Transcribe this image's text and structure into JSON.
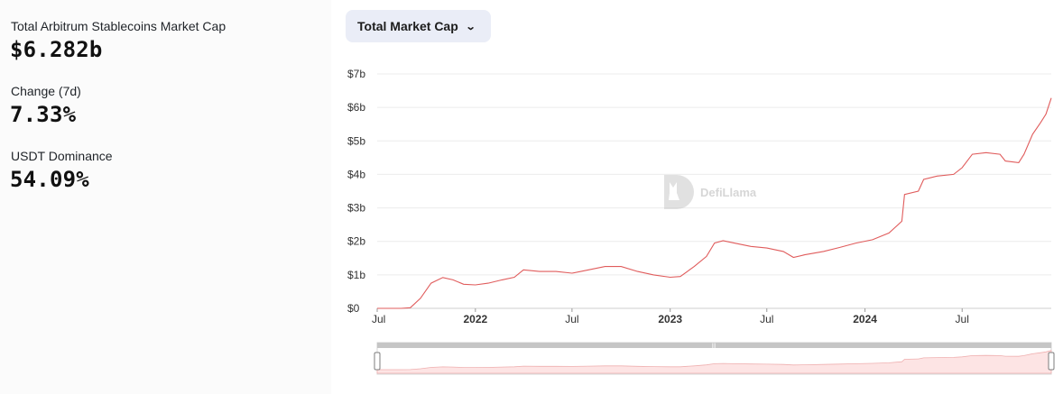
{
  "stats": {
    "total_label": "Total Arbitrum Stablecoins Market Cap",
    "total_value": "$6.282b",
    "change_label": "Change (7d)",
    "change_value": "7.33%",
    "dominance_label": "USDT Dominance",
    "dominance_value": "54.09%"
  },
  "dropdown": {
    "label": "Total Market Cap",
    "icon": "chevron-down-icon"
  },
  "watermark": {
    "text": "DefiLlama",
    "icon": "defillama-logo-icon"
  },
  "colors": {
    "line": "#e05c5c",
    "area": "#fde4e4",
    "grid": "#ececec",
    "slider": "#c5c5c5"
  },
  "chart_data": {
    "type": "line",
    "title": "",
    "xlabel": "",
    "ylabel": "",
    "ylim": [
      0,
      7
    ],
    "y_unit": "billion USD",
    "y_ticks": [
      0,
      1,
      2,
      3,
      4,
      5,
      6,
      7
    ],
    "y_tick_labels": [
      "$0",
      "$1b",
      "$2b",
      "$3b",
      "$4b",
      "$5b",
      "$6b",
      "$7b"
    ],
    "x_range": [
      "2021-07-01",
      "2024-12-15"
    ],
    "x_ticks": [
      {
        "date": "2021-07-01",
        "label": "Jul",
        "bold": false
      },
      {
        "date": "2022-01-01",
        "label": "2022",
        "bold": true
      },
      {
        "date": "2022-07-01",
        "label": "Jul",
        "bold": false
      },
      {
        "date": "2023-01-01",
        "label": "2023",
        "bold": true
      },
      {
        "date": "2023-07-01",
        "label": "Jul",
        "bold": false
      },
      {
        "date": "2024-01-01",
        "label": "2024",
        "bold": true
      },
      {
        "date": "2024-07-01",
        "label": "Jul",
        "bold": false
      }
    ],
    "grid": true,
    "legend": "none",
    "series": [
      {
        "values": [
          [
            "2021-07-01",
            0.0
          ],
          [
            "2021-08-15",
            0.0
          ],
          [
            "2021-09-01",
            0.02
          ],
          [
            "2021-09-20",
            0.3
          ],
          [
            "2021-10-10",
            0.75
          ],
          [
            "2021-11-01",
            0.92
          ],
          [
            "2021-11-20",
            0.85
          ],
          [
            "2021-12-10",
            0.72
          ],
          [
            "2022-01-01",
            0.7
          ],
          [
            "2022-01-25",
            0.75
          ],
          [
            "2022-02-20",
            0.85
          ],
          [
            "2022-03-15",
            0.93
          ],
          [
            "2022-04-01",
            1.15
          ],
          [
            "2022-05-01",
            1.1
          ],
          [
            "2022-06-01",
            1.1
          ],
          [
            "2022-07-01",
            1.05
          ],
          [
            "2022-08-01",
            1.15
          ],
          [
            "2022-09-01",
            1.25
          ],
          [
            "2022-10-01",
            1.25
          ],
          [
            "2022-11-01",
            1.1
          ],
          [
            "2022-12-01",
            1.0
          ],
          [
            "2023-01-01",
            0.93
          ],
          [
            "2023-01-20",
            0.95
          ],
          [
            "2023-02-15",
            1.25
          ],
          [
            "2023-03-10",
            1.55
          ],
          [
            "2023-03-25",
            1.95
          ],
          [
            "2023-04-10",
            2.02
          ],
          [
            "2023-05-01",
            1.95
          ],
          [
            "2023-06-01",
            1.85
          ],
          [
            "2023-07-01",
            1.8
          ],
          [
            "2023-08-01",
            1.7
          ],
          [
            "2023-08-20",
            1.52
          ],
          [
            "2023-09-10",
            1.6
          ],
          [
            "2023-10-15",
            1.7
          ],
          [
            "2023-11-15",
            1.82
          ],
          [
            "2023-12-15",
            1.95
          ],
          [
            "2024-01-15",
            2.05
          ],
          [
            "2024-02-15",
            2.25
          ],
          [
            "2024-03-10",
            2.6
          ],
          [
            "2024-03-15",
            3.4
          ],
          [
            "2024-04-10",
            3.5
          ],
          [
            "2024-04-20",
            3.85
          ],
          [
            "2024-05-15",
            3.95
          ],
          [
            "2024-06-15",
            4.0
          ],
          [
            "2024-07-01",
            4.2
          ],
          [
            "2024-07-20",
            4.6
          ],
          [
            "2024-08-15",
            4.65
          ],
          [
            "2024-09-10",
            4.6
          ],
          [
            "2024-09-20",
            4.4
          ],
          [
            "2024-10-15",
            4.35
          ],
          [
            "2024-10-25",
            4.6
          ],
          [
            "2024-11-10",
            5.2
          ],
          [
            "2024-11-25",
            5.55
          ],
          [
            "2024-12-05",
            5.8
          ],
          [
            "2024-12-15",
            6.28
          ]
        ]
      }
    ]
  }
}
